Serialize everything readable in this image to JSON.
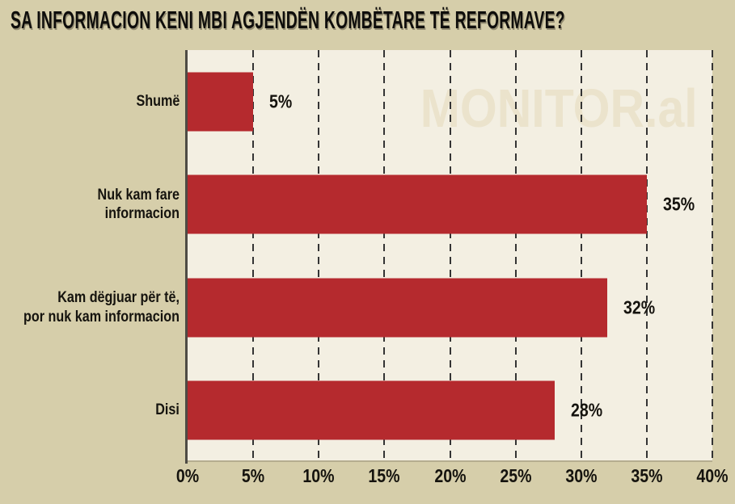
{
  "title": "SA INFORMACION KENI MBI AGJENDËN KOMBËTARE TË REFORMAVE?",
  "watermark": "MONITOR.al",
  "chart_data": {
    "type": "bar",
    "orientation": "horizontal",
    "title": "SA INFORMACION KENI MBI AGJENDËN KOMBËTARE TË REFORMAVE?",
    "categories": [
      "Shumë",
      "Nuk kam fare informacion",
      "Kam dëgjuar për të,\npor nuk kam informacion",
      "Disi"
    ],
    "values": [
      5,
      35,
      32,
      28
    ],
    "value_labels": [
      "5%",
      "35%",
      "32%",
      "28%"
    ],
    "xlabel": "",
    "ylabel": "",
    "xlim": [
      0,
      40
    ],
    "x_ticks": [
      "0%",
      "5%",
      "10%",
      "15%",
      "20%",
      "25%",
      "30%",
      "35%",
      "40%"
    ],
    "grid": "vertical-dashed",
    "legend": "none",
    "watermark": "MONITOR.al",
    "colors": {
      "bar": "#b52a2e",
      "background": "#d6ceaa",
      "plot_background": "#f3efe2",
      "gridline": "#343434",
      "axis_line": "#4e4b44",
      "text": "#15130e",
      "watermark": "#ebe3cc"
    }
  }
}
